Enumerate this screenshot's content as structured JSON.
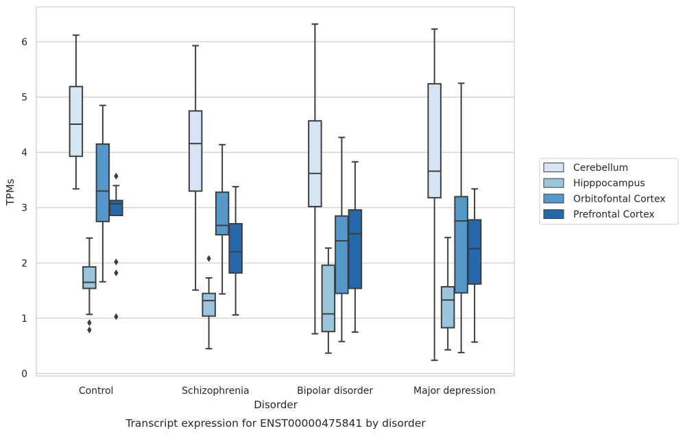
{
  "caption": "Transcript expression for ENST00000475841 by disorder",
  "chart_data": {
    "type": "box",
    "xlabel": "Disorder",
    "ylabel": "TPMs",
    "ylim": [
      -0.05,
      6.65
    ],
    "yticks": [
      0,
      1,
      2,
      3,
      4,
      5,
      6
    ],
    "grid": "horizontal",
    "legend_position": "right",
    "categories": [
      "Control",
      "Schizophrenia",
      "Bipolar disorder",
      "Major depression"
    ],
    "series": [
      {
        "name": "Cerebellum",
        "color": "#d6e5f3",
        "boxes": [
          {
            "whisker_low": 3.34,
            "q1": 3.93,
            "median": 4.51,
            "q3": 5.19,
            "whisker_high": 6.12,
            "outliers": []
          },
          {
            "whisker_low": 1.51,
            "q1": 3.3,
            "median": 4.16,
            "q3": 4.75,
            "whisker_high": 5.93,
            "outliers": []
          },
          {
            "whisker_low": 0.72,
            "q1": 3.02,
            "median": 3.62,
            "q3": 4.57,
            "whisker_high": 6.32,
            "outliers": []
          },
          {
            "whisker_low": 0.24,
            "q1": 3.18,
            "median": 3.66,
            "q3": 5.24,
            "whisker_high": 6.23,
            "outliers": []
          }
        ]
      },
      {
        "name": "Hipppocampus",
        "color": "#9ac5dd",
        "boxes": [
          {
            "whisker_low": 1.07,
            "q1": 1.54,
            "median": 1.65,
            "q3": 1.93,
            "whisker_high": 2.45,
            "outliers": [
              0.92,
              0.79
            ]
          },
          {
            "whisker_low": 0.45,
            "q1": 1.04,
            "median": 1.32,
            "q3": 1.45,
            "whisker_high": 1.73,
            "outliers": [
              2.08
            ]
          },
          {
            "whisker_low": 0.37,
            "q1": 0.76,
            "median": 1.08,
            "q3": 1.96,
            "whisker_high": 2.27,
            "outliers": []
          },
          {
            "whisker_low": 0.43,
            "q1": 0.83,
            "median": 1.33,
            "q3": 1.57,
            "whisker_high": 2.46,
            "outliers": []
          }
        ]
      },
      {
        "name": "Orbitofontal Cortex",
        "color": "#5598c9",
        "boxes": [
          {
            "whisker_low": 1.66,
            "q1": 2.75,
            "median": 3.3,
            "q3": 4.15,
            "whisker_high": 4.85,
            "outliers": []
          },
          {
            "whisker_low": 1.44,
            "q1": 2.51,
            "median": 2.68,
            "q3": 3.28,
            "whisker_high": 4.14,
            "outliers": []
          },
          {
            "whisker_low": 0.58,
            "q1": 1.45,
            "median": 2.4,
            "q3": 2.85,
            "whisker_high": 4.27,
            "outliers": []
          },
          {
            "whisker_low": 0.38,
            "q1": 1.46,
            "median": 2.76,
            "q3": 3.2,
            "whisker_high": 5.25,
            "outliers": []
          }
        ]
      },
      {
        "name": "Prefrontal Cortex",
        "color": "#2569aa",
        "boxes": [
          {
            "whisker_low": 2.86,
            "q1": 2.86,
            "median": 3.07,
            "q3": 3.13,
            "whisker_high": 3.4,
            "outliers": [
              3.57,
              2.02,
              1.82,
              1.03
            ]
          },
          {
            "whisker_low": 1.06,
            "q1": 1.82,
            "median": 2.2,
            "q3": 2.71,
            "whisker_high": 3.38,
            "outliers": []
          },
          {
            "whisker_low": 0.75,
            "q1": 1.54,
            "median": 2.53,
            "q3": 2.96,
            "whisker_high": 3.83,
            "outliers": []
          },
          {
            "whisker_low": 0.57,
            "q1": 1.62,
            "median": 2.26,
            "q3": 2.78,
            "whisker_high": 3.34,
            "outliers": []
          }
        ]
      }
    ]
  }
}
